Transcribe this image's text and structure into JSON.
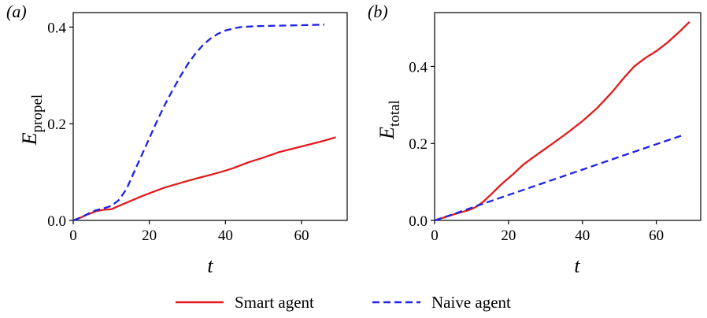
{
  "legend": {
    "items": [
      {
        "label": "Smart agent",
        "color": "#e31a1c",
        "dash": "solid"
      },
      {
        "label": "Naive agent",
        "color": "#1f22e6",
        "dash": "dashed"
      }
    ]
  },
  "chart_data": [
    {
      "type": "line",
      "panel_label": "(a)",
      "xlabel": "t",
      "ylabel_main": "E",
      "ylabel_sub": "propel",
      "xlim": [
        0,
        72
      ],
      "ylim": [
        0,
        0.43
      ],
      "xticks": [
        0,
        20,
        40,
        60
      ],
      "yticks": [
        0.0,
        0.2,
        0.4
      ],
      "series": [
        {
          "name": "Smart agent",
          "color": "#e31a1c",
          "dash": "solid",
          "points": [
            [
              0,
              0
            ],
            [
              2,
              0.006
            ],
            [
              4,
              0.013
            ],
            [
              6,
              0.019
            ],
            [
              8,
              0.022
            ],
            [
              10,
              0.023
            ],
            [
              12,
              0.03
            ],
            [
              15,
              0.04
            ],
            [
              18,
              0.05
            ],
            [
              20,
              0.056
            ],
            [
              24,
              0.068
            ],
            [
              28,
              0.077
            ],
            [
              32,
              0.086
            ],
            [
              36,
              0.094
            ],
            [
              40,
              0.103
            ],
            [
              42,
              0.108
            ],
            [
              46,
              0.12
            ],
            [
              50,
              0.13
            ],
            [
              54,
              0.141
            ],
            [
              58,
              0.149
            ],
            [
              62,
              0.157
            ],
            [
              66,
              0.165
            ],
            [
              69,
              0.172
            ]
          ]
        },
        {
          "name": "Naive agent",
          "color": "#1f22e6",
          "dash": "dashed",
          "points": [
            [
              0,
              0
            ],
            [
              2,
              0.006
            ],
            [
              4,
              0.014
            ],
            [
              6,
              0.021
            ],
            [
              8,
              0.025
            ],
            [
              10,
              0.03
            ],
            [
              12,
              0.042
            ],
            [
              14,
              0.065
            ],
            [
              16,
              0.1
            ],
            [
              18,
              0.135
            ],
            [
              20,
              0.17
            ],
            [
              22,
              0.205
            ],
            [
              24,
              0.238
            ],
            [
              26,
              0.268
            ],
            [
              28,
              0.296
            ],
            [
              30,
              0.322
            ],
            [
              32,
              0.344
            ],
            [
              34,
              0.362
            ],
            [
              36,
              0.376
            ],
            [
              38,
              0.386
            ],
            [
              40,
              0.393
            ],
            [
              42,
              0.397
            ],
            [
              44,
              0.4
            ],
            [
              48,
              0.402
            ],
            [
              54,
              0.403
            ],
            [
              60,
              0.404
            ],
            [
              66,
              0.405
            ]
          ]
        }
      ]
    },
    {
      "type": "line",
      "panel_label": "(b)",
      "xlabel": "t",
      "ylabel_main": "E",
      "ylabel_sub": "total",
      "xlim": [
        0,
        72
      ],
      "ylim": [
        0,
        0.54
      ],
      "xticks": [
        0,
        20,
        40,
        60
      ],
      "yticks": [
        0.0,
        0.2,
        0.4
      ],
      "series": [
        {
          "name": "Smart agent",
          "color": "#e31a1c",
          "dash": "solid",
          "points": [
            [
              0,
              0
            ],
            [
              3,
              0.009
            ],
            [
              6,
              0.018
            ],
            [
              9,
              0.026
            ],
            [
              11,
              0.034
            ],
            [
              13,
              0.047
            ],
            [
              15,
              0.065
            ],
            [
              18,
              0.093
            ],
            [
              21,
              0.118
            ],
            [
              24,
              0.145
            ],
            [
              28,
              0.173
            ],
            [
              32,
              0.2
            ],
            [
              36,
              0.228
            ],
            [
              40,
              0.258
            ],
            [
              44,
              0.292
            ],
            [
              48,
              0.333
            ],
            [
              51,
              0.368
            ],
            [
              54,
              0.4
            ],
            [
              57,
              0.422
            ],
            [
              60,
              0.44
            ],
            [
              63,
              0.462
            ],
            [
              66,
              0.488
            ],
            [
              69,
              0.516
            ]
          ]
        },
        {
          "name": "Naive agent",
          "color": "#1f22e6",
          "dash": "dashed",
          "points": [
            [
              0,
              0
            ],
            [
              5,
              0.016
            ],
            [
              10,
              0.033
            ],
            [
              20,
              0.066
            ],
            [
              30,
              0.099
            ],
            [
              40,
              0.132
            ],
            [
              50,
              0.165
            ],
            [
              60,
              0.198
            ],
            [
              67,
              0.221
            ]
          ]
        }
      ]
    }
  ]
}
